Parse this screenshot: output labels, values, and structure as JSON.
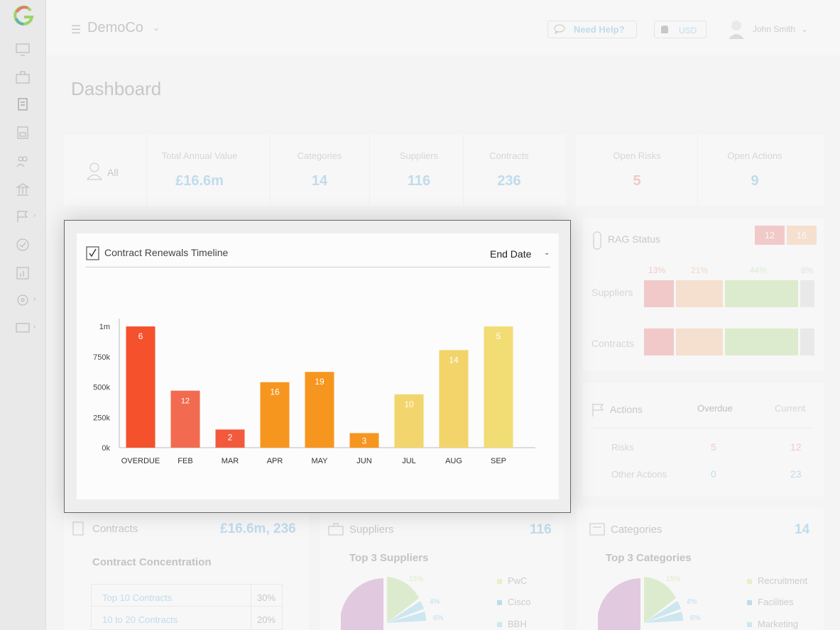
{
  "app": {
    "company": "DemoCo",
    "help_label": "Need Help?",
    "currency": "USD",
    "user_name": "John Smith",
    "page_title": "Dashboard"
  },
  "stats": {
    "filter_label": "All",
    "items": [
      {
        "label": "Total Annual Value",
        "value": "£16.6m"
      },
      {
        "label": "Categories",
        "value": "14"
      },
      {
        "label": "Suppliers",
        "value": "116"
      },
      {
        "label": "Contracts",
        "value": "236"
      }
    ],
    "risks": {
      "label": "Open Risks",
      "value": "5"
    },
    "actions": {
      "label": "Open Actions",
      "value": "9"
    }
  },
  "rag": {
    "title": "RAG Status",
    "badge_red": "12",
    "badge_amber": "16",
    "percents": [
      "13%",
      "21%",
      "44%",
      "8%"
    ],
    "rows": [
      "Suppliers",
      "Contracts"
    ]
  },
  "actions_panel": {
    "title": "Actions",
    "col_overdue": "Overdue",
    "col_current": "Current",
    "rows": [
      {
        "label": "Risks",
        "overdue": "5",
        "current": "12"
      },
      {
        "label": "Other Actions",
        "overdue": "0",
        "current": "23"
      }
    ]
  },
  "contracts_panel": {
    "title": "Contracts",
    "value": "£16.6m, 236",
    "subtitle": "Contract Concentration",
    "rows": [
      {
        "label": "Top 10 Contracts",
        "value": "30%"
      },
      {
        "label": "10 to 20 Contracts",
        "value": "20%"
      }
    ]
  },
  "suppliers_panel": {
    "title": "Suppliers",
    "value": "116",
    "subtitle": "Top 3 Suppliers",
    "pie_labels": [
      "15%",
      "4%",
      "6%"
    ],
    "legend": [
      "PwC",
      "Cisco",
      "BBH"
    ]
  },
  "categories_panel": {
    "title": "Categories",
    "value": "14",
    "subtitle": "Top 3 Categories",
    "pie_labels": [
      "15%",
      "4%",
      "6%"
    ],
    "legend": [
      "Recruitment",
      "Facilities",
      "Marketing"
    ]
  },
  "modal": {
    "title": "Contract Renewals Timeline",
    "sort_label": "End Date"
  },
  "colors": {
    "accent": "#3b9bd6",
    "red": "#e85a5a",
    "bar_overdue": "#f4512c",
    "bar_feb": "#f26b50",
    "bar_mar": "#f35a3c",
    "bar_orange": "#f6961f",
    "bar_yellow": "#f2d56c",
    "bar_aug": "#f2d46a"
  },
  "chart_data": {
    "type": "bar",
    "title": "Contract Renewals Timeline",
    "categories": [
      "OVERDUE",
      "FEB",
      "MAR",
      "APR",
      "MAY",
      "JUN",
      "JUL",
      "AUG",
      "SEP"
    ],
    "values": [
      1000000,
      470000,
      150000,
      540000,
      625000,
      120000,
      440000,
      805000,
      1000000
    ],
    "counts": [
      "6",
      "12",
      "2",
      "16",
      "19",
      "3",
      "10",
      "14",
      "5"
    ],
    "bar_colors": [
      "#f4512c",
      "#f26b50",
      "#f35a3c",
      "#f6961f",
      "#f6961f",
      "#f6961f",
      "#f2d56c",
      "#f2d46a",
      "#f2dc74"
    ],
    "yticks": [
      {
        "value": 0,
        "label": "0k"
      },
      {
        "value": 250000,
        "label": "250k"
      },
      {
        "value": 500000,
        "label": "500k"
      },
      {
        "value": 750000,
        "label": "750k"
      },
      {
        "value": 1000000,
        "label": "1m"
      }
    ],
    "ylim": [
      0,
      1030000
    ],
    "grid": false,
    "xlabel": "",
    "ylabel": ""
  }
}
